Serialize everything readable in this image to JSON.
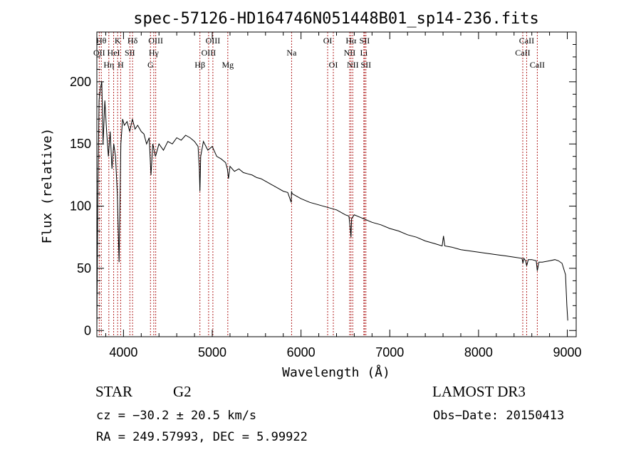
{
  "chart_data": {
    "type": "line",
    "title": "spec-57126-HD164746N051448B01_sp14-236.fits",
    "xlabel": "Wavelength (Å)",
    "ylabel": "Flux (relative)",
    "xlim": [
      3700,
      9100
    ],
    "ylim": [
      -5,
      240
    ],
    "xticks": [
      4000,
      5000,
      6000,
      7000,
      8000,
      9000
    ],
    "yticks": [
      0,
      50,
      100,
      150,
      200
    ],
    "grid": false,
    "series": [
      {
        "name": "flux",
        "x": [
          3700,
          3710,
          3725,
          3740,
          3755,
          3770,
          3790,
          3810,
          3830,
          3850,
          3870,
          3890,
          3910,
          3930,
          3950,
          3970,
          3990,
          4010,
          4040,
          4070,
          4100,
          4130,
          4160,
          4200,
          4230,
          4260,
          4290,
          4310,
          4330,
          4360,
          4400,
          4450,
          4500,
          4550,
          4600,
          4650,
          4700,
          4750,
          4800,
          4840,
          4855,
          4861,
          4870,
          4900,
          4950,
          5000,
          5050,
          5100,
          5150,
          5170,
          5183,
          5200,
          5250,
          5300,
          5350,
          5400,
          5450,
          5500,
          5550,
          5600,
          5650,
          5700,
          5750,
          5800,
          5850,
          5890,
          5893,
          5900,
          5950,
          6000,
          6100,
          6200,
          6300,
          6400,
          6500,
          6540,
          6555,
          6563,
          6570,
          6600,
          6700,
          6800,
          6900,
          7000,
          7100,
          7200,
          7300,
          7400,
          7500,
          7590,
          7605,
          7620,
          7700,
          7800,
          7900,
          8000,
          8100,
          8200,
          8300,
          8400,
          8490,
          8500,
          8510,
          8530,
          8542,
          8560,
          8600,
          8650,
          8662,
          8680,
          8720,
          8800,
          8860,
          8900,
          8940,
          8980,
          8995,
          9005
        ],
        "values": [
          0,
          100,
          185,
          195,
          200,
          150,
          185,
          160,
          140,
          160,
          130,
          150,
          140,
          110,
          55,
          150,
          170,
          165,
          168,
          160,
          170,
          162,
          165,
          160,
          158,
          150,
          155,
          125,
          150,
          140,
          150,
          145,
          152,
          150,
          155,
          153,
          157,
          155,
          152,
          148,
          130,
          112,
          140,
          152,
          145,
          148,
          140,
          138,
          135,
          130,
          122,
          132,
          128,
          130,
          127,
          126,
          125,
          123,
          122,
          120,
          118,
          116,
          114,
          112,
          111,
          103,
          112,
          110,
          108,
          106,
          103,
          101,
          99,
          97,
          93,
          92,
          82,
          75,
          90,
          93,
          90,
          87,
          85,
          82,
          80,
          77,
          75,
          72,
          70,
          68,
          76,
          68,
          67,
          65,
          64,
          63,
          62,
          61,
          60,
          59,
          58,
          54,
          58,
          56,
          52,
          57,
          57,
          56,
          48,
          55,
          55,
          56,
          57,
          56,
          54,
          45,
          20,
          8
        ]
      }
    ],
    "lines": [
      {
        "name": "OII",
        "x": 3727,
        "row": 2
      },
      {
        "name": "Hθ",
        "x": 3750,
        "row": 1
      },
      {
        "name": "Hη",
        "x": 3835,
        "row": 3
      },
      {
        "name": "HeI",
        "x": 3889,
        "row": 2
      },
      {
        "name": "K",
        "x": 3934,
        "row": 1
      },
      {
        "name": "H",
        "x": 3968,
        "row": 3
      },
      {
        "name": "SII",
        "x": 4072,
        "row": 2
      },
      {
        "name": "Hδ",
        "x": 4102,
        "row": 1
      },
      {
        "name": "G",
        "x": 4304,
        "row": 3
      },
      {
        "name": "Hγ",
        "x": 4341,
        "row": 2
      },
      {
        "name": "OIII",
        "x": 4363,
        "row": 1
      },
      {
        "name": "Hβ",
        "x": 4861,
        "row": 3
      },
      {
        "name": "OIII",
        "x": 4959,
        "row": 2
      },
      {
        "name": "OIII",
        "x": 5007,
        "row": 1
      },
      {
        "name": "Mg",
        "x": 5175,
        "row": 3
      },
      {
        "name": "Na",
        "x": 5894,
        "row": 2
      },
      {
        "name": "OI",
        "x": 6300,
        "row": 1
      },
      {
        "name": "OI",
        "x": 6364,
        "row": 3
      },
      {
        "name": "NII",
        "x": 6548,
        "row": 2
      },
      {
        "name": "Hα",
        "x": 6563,
        "row": 1
      },
      {
        "name": "NII",
        "x": 6583,
        "row": 3
      },
      {
        "name": "Li",
        "x": 6708,
        "row": 2
      },
      {
        "name": "SII",
        "x": 6716,
        "row": 1
      },
      {
        "name": "SII",
        "x": 6731,
        "row": 3
      },
      {
        "name": "CaII",
        "x": 8498,
        "row": 2
      },
      {
        "name": "CaII",
        "x": 8542,
        "row": 1
      },
      {
        "name": "CaII",
        "x": 8662,
        "row": 3
      }
    ]
  },
  "info": {
    "obj_class": "STAR",
    "subclass": "G2",
    "survey": "LAMOST DR3",
    "cz": "cz = −30.2 ± 20.5 km/s",
    "obs_date": "Obs−Date: 20150413",
    "radec": "RA = 249.57993, DEC =    5.99922"
  },
  "colors": {
    "line_marker": "#b22222",
    "spectrum": "#000000"
  }
}
